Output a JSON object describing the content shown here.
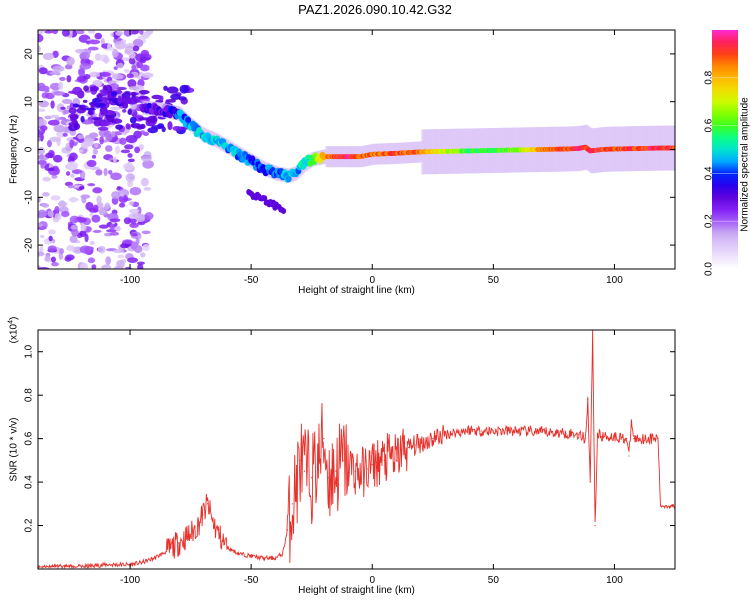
{
  "title": "PAZ1.2026.090.10.42.G32",
  "colors": {
    "spectrogram_cmap": [
      "#ffffff",
      "#e6d6fa",
      "#c7a6f2",
      "#8f2bff",
      "#5a00d8",
      "#0000ff",
      "#00c8ff",
      "#00ff9a",
      "#4cff00",
      "#c8ff00",
      "#ffd200",
      "#ff8c00",
      "#ff1e1e",
      "#ff2ad2"
    ],
    "snr_line": "#e8302a",
    "axis": "#000000"
  },
  "chart_data": [
    {
      "type": "heatmap",
      "title": "PAZ1.2026.090.10.42.G32",
      "xlabel": "Height of straight line (km)",
      "ylabel": "Frequency (Hz)",
      "xlim": [
        -138,
        125
      ],
      "ylim": [
        -25,
        25
      ],
      "x_ticks": [
        -100,
        -50,
        0,
        50,
        100
      ],
      "y_ticks": [
        -20,
        -10,
        0,
        10,
        20
      ],
      "ridge": {
        "x": [
          -100,
          -90,
          -85,
          -80,
          -75,
          -70,
          -65,
          -60,
          -55,
          -50,
          -45,
          -40,
          -35,
          -32,
          -28,
          -25,
          -20,
          -15,
          -10,
          -5,
          0,
          10,
          20,
          30,
          40,
          50,
          60,
          70,
          80,
          85,
          88,
          90,
          95,
          100,
          110,
          120,
          125
        ],
        "frequency_hz": [
          9,
          8.5,
          8,
          7.5,
          5,
          3,
          2,
          0.5,
          -1,
          -2.5,
          -4,
          -5,
          -5.5,
          -5,
          -3,
          -2,
          -1.5,
          -1.5,
          -1.5,
          -1.5,
          -1,
          -0.8,
          -0.5,
          -0.4,
          -0.3,
          -0.2,
          -0.1,
          0,
          0.1,
          0.2,
          0.5,
          -0.3,
          0,
          0.1,
          0.2,
          0.3,
          0.3
        ],
        "amplitude": [
          0.3,
          0.3,
          0.32,
          0.4,
          0.45,
          0.45,
          0.5,
          0.45,
          0.45,
          0.4,
          0.4,
          0.4,
          0.45,
          0.45,
          0.5,
          0.55,
          0.8,
          0.9,
          0.95,
          0.9,
          0.85,
          0.9,
          0.85,
          0.7,
          0.6,
          0.55,
          0.65,
          0.85,
          0.9,
          0.95,
          0.9,
          0.95,
          0.9,
          0.9,
          0.9,
          0.95,
          0.9
        ]
      },
      "noise_region_x": [
        -138,
        -92
      ],
      "colorbar": {
        "label": "Normalized spectral amplitude",
        "range": [
          0,
          1
        ],
        "ticks": [
          "0.0",
          "0.2",
          "0.4",
          "0.6",
          "0.8"
        ]
      }
    },
    {
      "type": "line",
      "xlabel": "Height of straight line (km)",
      "ylabel": "SNR (10 * v/v)",
      "y_scale_label": "(x10",
      "y_scale_exp": "4",
      "ylabel_unit": ")",
      "xlim": [
        -138,
        125
      ],
      "ylim": [
        0,
        1.1
      ],
      "x_ticks": [
        -100,
        -50,
        0,
        50,
        100
      ],
      "y_ticks": [
        0.2,
        0.4,
        0.6,
        0.8,
        1.0
      ],
      "y_tick_labels": [
        "0.2",
        "0.4",
        "0.6",
        "0.8",
        "1.0"
      ],
      "series": [
        {
          "name": "SNR",
          "x": [
            -138,
            -120,
            -110,
            -100,
            -95,
            -90,
            -85,
            -80,
            -75,
            -72,
            -70,
            -68,
            -66,
            -63,
            -60,
            -55,
            -50,
            -45,
            -40,
            -37,
            -35,
            -33,
            -31,
            -30,
            -28,
            -25,
            -22,
            -20,
            -18,
            -15,
            -12,
            -10,
            -7,
            -5,
            -2,
            0,
            2,
            5,
            8,
            10,
            12,
            15,
            18,
            20,
            25,
            30,
            35,
            40,
            45,
            50,
            60,
            70,
            80,
            85,
            88,
            89,
            90,
            91,
            92,
            93,
            95,
            100,
            105,
            106,
            107,
            108,
            110,
            115,
            117,
            118,
            119,
            120,
            125
          ],
          "y": [
            0.01,
            0.01,
            0.02,
            0.02,
            0.03,
            0.05,
            0.08,
            0.12,
            0.16,
            0.2,
            0.25,
            0.3,
            0.22,
            0.15,
            0.1,
            0.07,
            0.06,
            0.05,
            0.05,
            0.07,
            0.18,
            0.3,
            0.4,
            0.5,
            0.45,
            0.42,
            0.5,
            0.6,
            0.42,
            0.45,
            0.5,
            0.48,
            0.45,
            0.44,
            0.46,
            0.48,
            0.49,
            0.5,
            0.52,
            0.5,
            0.55,
            0.56,
            0.57,
            0.58,
            0.6,
            0.62,
            0.63,
            0.64,
            0.635,
            0.635,
            0.635,
            0.63,
            0.625,
            0.62,
            0.6,
            0.78,
            0.4,
            1.1,
            0.2,
            0.62,
            0.61,
            0.61,
            0.6,
            0.52,
            0.68,
            0.6,
            0.6,
            0.6,
            0.6,
            0.6,
            0.29,
            0.29,
            0.29
          ]
        }
      ]
    }
  ]
}
